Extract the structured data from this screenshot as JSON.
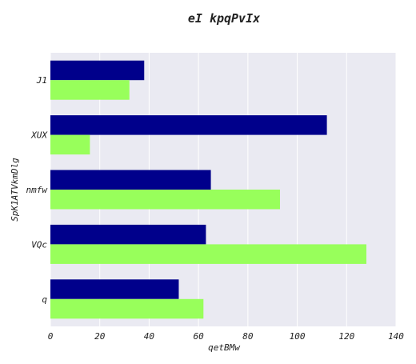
{
  "chart_data": {
    "type": "bar",
    "orientation": "horizontal",
    "title": "eI kpqPvIx",
    "xlabel": "qetBMw",
    "ylabel": "SpK1ATVkmDlg",
    "categories": [
      "J1",
      "XUX",
      "nmfw",
      "VQc",
      "q"
    ],
    "series": [
      {
        "values": [
          38,
          112,
          65,
          63,
          52
        ],
        "color": "#00008b"
      },
      {
        "values": [
          32,
          16,
          93,
          128,
          62
        ],
        "color": "#98ff5b"
      }
    ],
    "xlim": [
      0,
      140
    ],
    "xticks": [
      0,
      20,
      40,
      60,
      80,
      100,
      120,
      140
    ],
    "grid": true,
    "legend": "none",
    "background": "#eaeaf2"
  }
}
